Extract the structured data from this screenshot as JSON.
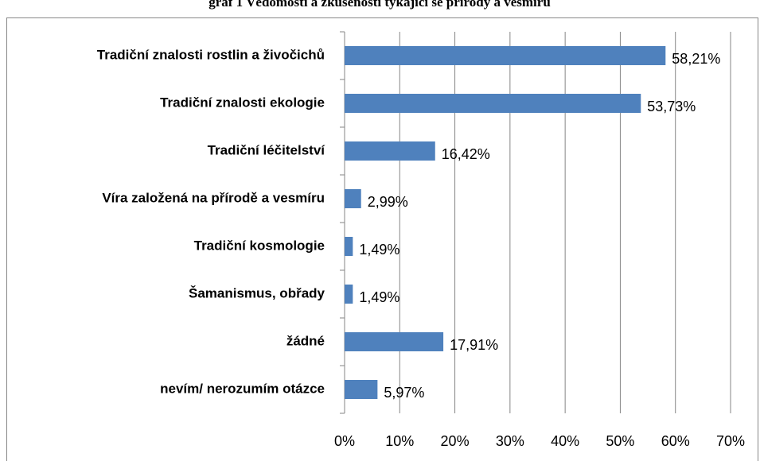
{
  "chart_data": {
    "type": "bar",
    "orientation": "horizontal",
    "title": "graf 1 Vědomosti a zkušenosti týkající se přírody a vesmíru",
    "categories": [
      "Tradiční znalosti rostlin a živočichů",
      "Tradiční znalosti ekologie",
      "Tradiční léčitelství",
      "Víra založená na přírodě a vesmíru",
      "Tradiční kosmologie",
      "Šamanismus, obřady",
      "žádné",
      "nevím/ nerozumím otázce"
    ],
    "values": [
      58.21,
      53.73,
      16.42,
      2.99,
      1.49,
      1.49,
      17.91,
      5.97
    ],
    "value_labels": [
      "58,21%",
      "53,73%",
      "16,42%",
      "2,99%",
      "1,49%",
      "1,49%",
      "17,91%",
      "5,97%"
    ],
    "color": "#4f81bd",
    "xlim": [
      0,
      70
    ],
    "xticks": [
      {
        "value": 0,
        "label": "0%"
      },
      {
        "value": 10,
        "label": "10%"
      },
      {
        "value": 20,
        "label": "20%"
      },
      {
        "value": 30,
        "label": "30%"
      },
      {
        "value": 40,
        "label": "40%"
      },
      {
        "value": 50,
        "label": "50%"
      },
      {
        "value": 60,
        "label": "60%"
      },
      {
        "value": 70,
        "label": "70%"
      }
    ],
    "grid": true
  }
}
